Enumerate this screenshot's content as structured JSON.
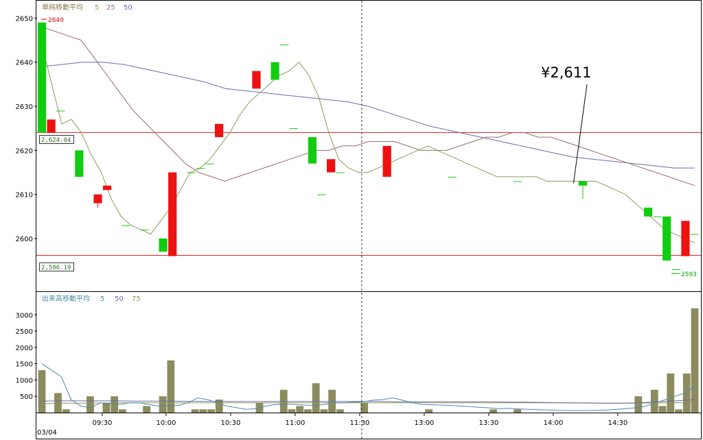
{
  "chart_data": [
    {
      "type": "candlestick",
      "ylim": [
        2593,
        2651
      ],
      "y_ticks": [
        2600,
        2610,
        2620,
        2630,
        2640,
        2650
      ],
      "legend": {
        "title": "単純移動平均",
        "items": [
          {
            "label": "5",
            "color": "#8a9a5b"
          },
          {
            "label": "25",
            "color": "#9a6a6a"
          },
          {
            "label": "50",
            "color": "#6a6aa8"
          }
        ]
      },
      "candles": [
        {
          "open": 2624,
          "close": 2649,
          "high": 2649,
          "low": 2624
        },
        {
          "open": 2627,
          "close": 2624,
          "high": 2627,
          "low": 2624
        },
        {
          "open": 2629,
          "close": 2629,
          "high": 2629,
          "low": 2629
        },
        null,
        {
          "open": 2614,
          "close": 2620,
          "high": 2620,
          "low": 2614
        },
        null,
        {
          "open": 2610,
          "close": 2608,
          "high": 2610,
          "low": 2607
        },
        {
          "open": 2612,
          "close": 2611,
          "high": 2612,
          "low": 2611
        },
        null,
        {
          "open": 2603,
          "close": 2603,
          "high": 2603,
          "low": 2603
        },
        null,
        {
          "open": 2602,
          "close": 2602,
          "high": 2602,
          "low": 2602
        },
        null,
        {
          "open": 2597,
          "close": 2600,
          "high": 2600,
          "low": 2597
        },
        {
          "open": 2615,
          "close": 2596,
          "high": 2615,
          "low": 2596
        },
        null,
        {
          "open": 2615,
          "close": 2615,
          "high": 2615,
          "low": 2615
        },
        {
          "open": 2616,
          "close": 2616,
          "high": 2616,
          "low": 2616
        },
        {
          "open": 2617,
          "close": 2617,
          "high": 2617,
          "low": 2617
        },
        {
          "open": 2626,
          "close": 2623,
          "high": 2626,
          "low": 2623
        },
        null,
        null,
        null,
        {
          "open": 2638,
          "close": 2634,
          "high": 2638,
          "low": 2634
        },
        null,
        {
          "open": 2636,
          "close": 2640,
          "high": 2640,
          "low": 2636
        },
        {
          "open": 2644,
          "close": 2644,
          "high": 2644,
          "low": 2644
        },
        {
          "open": 2625,
          "close": 2625,
          "high": 2625,
          "low": 2625
        },
        null,
        {
          "open": 2617,
          "close": 2623,
          "high": 2623,
          "low": 2617
        },
        {
          "open": 2610,
          "close": 2610,
          "high": 2610,
          "low": 2610
        },
        {
          "open": 2618,
          "close": 2615,
          "high": 2618,
          "low": 2615
        },
        {
          "open": 2615,
          "close": 2615,
          "high": 2615,
          "low": 2615
        },
        null,
        null,
        null,
        null,
        {
          "open": 2621,
          "close": 2614,
          "high": 2621,
          "low": 2614
        },
        null,
        null,
        null,
        null,
        null,
        null,
        {
          "open": 2614,
          "close": 2614,
          "high": 2614,
          "low": 2614
        },
        null,
        null,
        null,
        null,
        null,
        null,
        {
          "open": 2613,
          "close": 2613,
          "high": 2613,
          "low": 2613
        },
        null,
        null,
        null,
        null,
        null,
        null,
        {
          "open": 2612,
          "close": 2613,
          "high": 2613,
          "low": 2609
        },
        null,
        null,
        null,
        null,
        null,
        null,
        {
          "open": 2605,
          "close": 2607,
          "high": 2607,
          "low": 2605
        },
        {
          "open": 2605,
          "close": 2605,
          "high": 2605,
          "low": 2605
        },
        {
          "open": 2595,
          "close": 2605,
          "high": 2605,
          "low": 2595
        },
        {
          "open": 2593,
          "close": 2593,
          "high": 2593,
          "low": 2593
        },
        {
          "open": 2604,
          "close": 2596,
          "high": 2604,
          "low": 2596
        },
        {
          "open": 2601,
          "close": 2601,
          "high": 2601,
          "low": 2601
        }
      ],
      "ma5": [
        2644,
        2635,
        2626,
        2627,
        2624,
        2619,
        2615,
        2609,
        2605,
        2603,
        2602,
        2601,
        2604,
        2607,
        2611,
        2615,
        2616,
        2618,
        2621,
        2624,
        2628,
        2631,
        2633,
        2635,
        2637,
        2638,
        2640,
        2637,
        2632,
        2624,
        2618,
        2616,
        2615,
        2615,
        2616,
        2617,
        2618,
        2619,
        2620,
        2621,
        2620,
        2619,
        2618,
        2617,
        2616,
        2615,
        2614,
        2614,
        2614,
        2614,
        2614,
        2613,
        2613,
        2613,
        2613,
        2613,
        2613,
        2612,
        2611,
        2610,
        2608,
        2606,
        2604,
        2602,
        2601,
        2600,
        2599
      ],
      "ma25": [
        2648,
        2647,
        2646,
        2645,
        2641,
        2637,
        2633,
        2629,
        2626,
        2623,
        2620,
        2617,
        2615,
        2614,
        2613,
        2614,
        2615,
        2616,
        2617,
        2618,
        2619,
        2620,
        2620,
        2621,
        2621,
        2622,
        2622,
        2622,
        2621,
        2620,
        2620,
        2620,
        2621,
        2622,
        2623,
        2623,
        2624,
        2624,
        2623,
        2623,
        2622,
        2621,
        2620,
        2619,
        2618,
        2617,
        2616,
        2615,
        2614,
        2613,
        2612
      ],
      "ma50": [
        2639,
        2639.5,
        2640,
        2640,
        2639.5,
        2638.5,
        2637.5,
        2636.5,
        2635.5,
        2634,
        2633.5,
        2633,
        2632.5,
        2632,
        2631.5,
        2631,
        2630,
        2628.5,
        2627,
        2625.5,
        2624.5,
        2623.5,
        2622.5,
        2621.5,
        2620.5,
        2619.5,
        2618.5,
        2618,
        2617.5,
        2617,
        2616.5,
        2616,
        2616
      ],
      "horizontal_lines": [
        {
          "value": 2624.04,
          "label": "2,624.04"
        },
        {
          "value": 2596.19,
          "label": "2,596.19"
        }
      ],
      "high_marker": "2649",
      "low_marker": "2593",
      "callout": {
        "label": "¥2,611",
        "value": 2612.5
      }
    },
    {
      "type": "bar",
      "ylim": [
        0,
        3300
      ],
      "y_ticks": [
        500,
        1000,
        1500,
        2000,
        2500,
        3000
      ],
      "legend": {
        "title": "出来高移動平均",
        "items": [
          {
            "label": "5",
            "color": "#4a8aa8"
          },
          {
            "label": "50",
            "color": "#6a6aa8"
          },
          {
            "label": "75",
            "color": "#8a9a5b"
          }
        ]
      },
      "bar_color": "#8c8b5e",
      "values": [
        1300,
        0,
        600,
        100,
        0,
        0,
        500,
        0,
        300,
        500,
        100,
        0,
        0,
        200,
        0,
        500,
        1600,
        0,
        0,
        100,
        100,
        100,
        400,
        0,
        0,
        0,
        0,
        300,
        0,
        0,
        700,
        100,
        200,
        100,
        900,
        100,
        700,
        100,
        0,
        0,
        300,
        0,
        0,
        0,
        0,
        0,
        0,
        0,
        100,
        0,
        0,
        0,
        0,
        0,
        0,
        0,
        100,
        0,
        0,
        100,
        0,
        0,
        0,
        0,
        0,
        0,
        0,
        0,
        0,
        0,
        0,
        0,
        0,
        0,
        500,
        0,
        700,
        200,
        1200,
        100,
        1200,
        3200
      ],
      "ma5": [
        1500,
        1300,
        1100,
        400,
        200,
        150,
        300,
        280,
        250,
        300,
        300,
        250,
        200,
        210,
        220,
        300,
        450,
        400,
        300,
        200,
        150,
        100,
        120,
        200,
        250,
        260,
        250,
        230,
        220,
        250,
        300,
        300,
        320,
        330,
        380,
        400,
        450,
        380,
        300,
        250,
        240,
        230,
        220,
        200,
        180,
        160,
        140,
        120,
        130,
        110,
        100,
        90,
        80,
        70,
        60,
        60,
        60,
        70,
        80,
        100,
        120,
        150,
        200,
        300,
        400,
        500,
        600,
        800
      ],
      "ma50": [
        350,
        360,
        360,
        360,
        360,
        350,
        350,
        350,
        345,
        345,
        340,
        340,
        340,
        340,
        340,
        340,
        340,
        340,
        340,
        330,
        330,
        330,
        330,
        330,
        330,
        320,
        320,
        310,
        300,
        300,
        290,
        290,
        300,
        330,
        360,
        400
      ],
      "ma75": [
        280,
        285,
        290,
        295,
        300,
        300,
        300,
        300,
        300,
        300,
        300,
        300,
        300,
        300,
        300,
        300,
        300,
        300,
        300,
        300,
        300,
        300,
        300,
        300,
        300,
        300,
        290,
        290,
        290,
        295,
        300,
        320
      ]
    }
  ],
  "x_axis": {
    "date_label": "03/04",
    "ticks": [
      "09:30",
      "10:00",
      "10:30",
      "11:00",
      "11:30",
      "13:00",
      "13:30",
      "14:00",
      "14:30"
    ],
    "tick_positions": [
      0.1,
      0.196,
      0.293,
      0.39,
      0.487,
      0.584,
      0.681,
      0.778,
      0.875
    ]
  }
}
